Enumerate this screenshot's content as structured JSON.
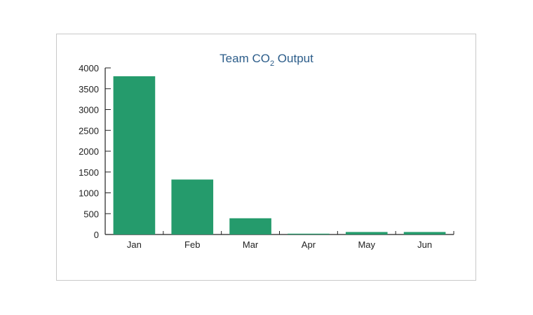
{
  "chart_data": {
    "type": "bar",
    "title_main": "Team CO",
    "title_sub": "2",
    "title_end": " Output",
    "categories": [
      "Jan",
      "Feb",
      "Mar",
      "Apr",
      "May",
      "Jun"
    ],
    "values": [
      3800,
      1320,
      390,
      20,
      60,
      60
    ],
    "ylim": [
      0,
      4000
    ],
    "yticks": [
      0,
      500,
      1000,
      1500,
      2000,
      2500,
      3000,
      3500,
      4000
    ],
    "xlabel": "",
    "ylabel": "",
    "grid": false,
    "legend": "none",
    "bar_color": "#259b6c",
    "axis_color": "#222222",
    "title_color": "#2c5d8a"
  }
}
